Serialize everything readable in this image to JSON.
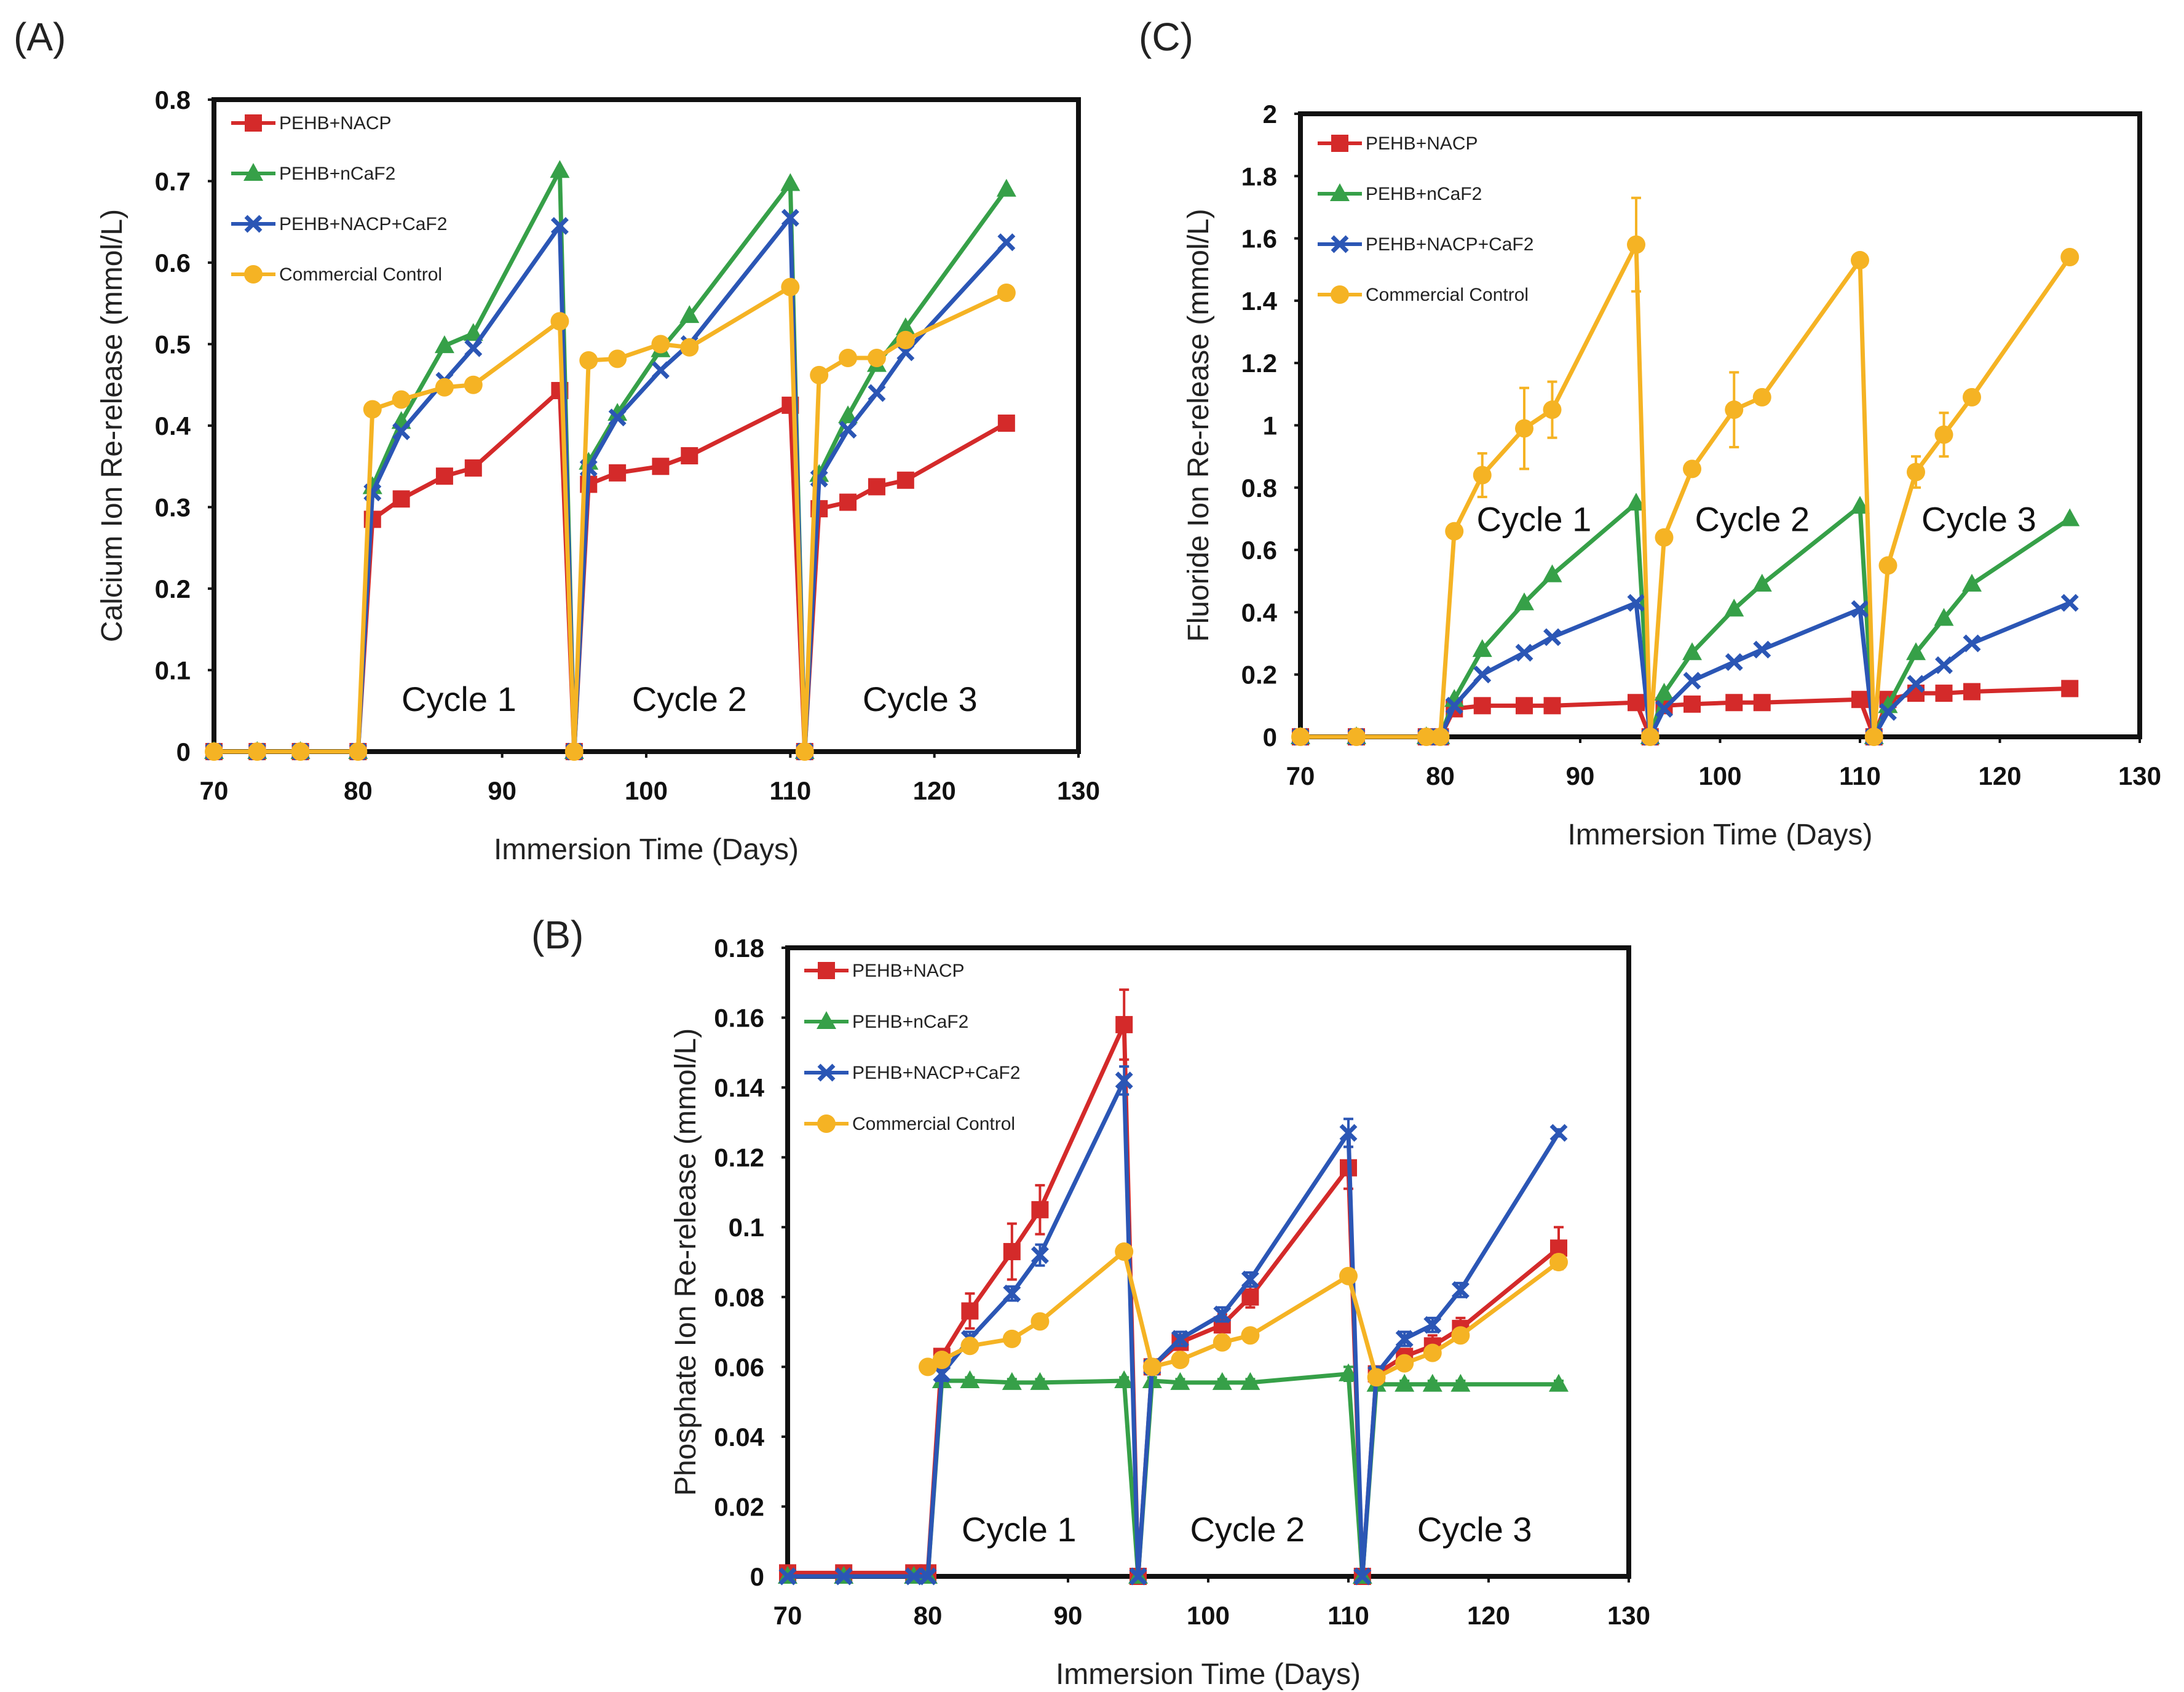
{
  "figure": {
    "panels": [
      "(A)",
      "(B)",
      "(C)"
    ],
    "colors": {
      "PEHB+NACP": "#d42a2a",
      "PEHB+nCaF2": "#36a048",
      "PEHB+NACP+CaF2": "#2b56b5",
      "Commercial Control": "#f5b324"
    }
  },
  "chart_data": [
    {
      "id": "A",
      "panel_label": "(A)",
      "type": "line",
      "xlabel": "Immersion Time (Days)",
      "ylabel": "Calcium Ion Re-release (mmol/L)",
      "xlim": [
        70,
        130
      ],
      "ylim": [
        0,
        0.8
      ],
      "xticks": [
        70,
        80,
        90,
        100,
        110,
        120,
        130
      ],
      "yticks": [
        0,
        0.1,
        0.2,
        0.3,
        0.4,
        0.5,
        0.6,
        0.7,
        0.8
      ],
      "ytick_labels": [
        "0",
        "0.1",
        "0.2",
        "0.3",
        "0.4",
        "0.5",
        "0.6",
        "0.7",
        "0.8"
      ],
      "legend": "top-left",
      "annotations": [
        {
          "text": "Cycle 1",
          "x": 87,
          "y": 0.05
        },
        {
          "text": "Cycle 2",
          "x": 103,
          "y": 0.05
        },
        {
          "text": "Cycle 3",
          "x": 119,
          "y": 0.05
        }
      ],
      "series": [
        {
          "name": "PEHB+NACP",
          "marker": "square",
          "x": [
            70,
            73,
            76,
            80,
            81,
            83,
            86,
            88,
            94,
            95,
            96,
            98,
            101,
            103,
            110,
            111,
            112,
            114,
            116,
            118,
            125
          ],
          "y": [
            0,
            0,
            0,
            0,
            0.285,
            0.31,
            0.338,
            0.348,
            0.443,
            0,
            0.328,
            0.342,
            0.35,
            0.363,
            0.425,
            0,
            0.298,
            0.306,
            0.325,
            0.333,
            0.403
          ]
        },
        {
          "name": "PEHB+nCaF2",
          "marker": "triangle",
          "x": [
            70,
            73,
            76,
            80,
            81,
            83,
            86,
            88,
            94,
            95,
            96,
            98,
            101,
            103,
            110,
            111,
            112,
            114,
            116,
            118,
            125
          ],
          "y": [
            0,
            0,
            0,
            0,
            0.325,
            0.405,
            0.498,
            0.513,
            0.713,
            0,
            0.355,
            0.415,
            0.493,
            0.535,
            0.697,
            0,
            0.34,
            0.412,
            0.475,
            0.52,
            0.69
          ]
        },
        {
          "name": "PEHB+NACP+CaF2",
          "marker": "x",
          "x": [
            70,
            73,
            76,
            80,
            81,
            83,
            86,
            88,
            94,
            95,
            96,
            98,
            101,
            103,
            110,
            111,
            112,
            114,
            116,
            118,
            125
          ],
          "y": [
            0,
            0,
            0,
            0,
            0.318,
            0.393,
            0.455,
            0.495,
            0.645,
            0,
            0.348,
            0.41,
            0.468,
            0.5,
            0.655,
            0,
            0.335,
            0.395,
            0.44,
            0.49,
            0.625
          ]
        },
        {
          "name": "Commercial Control",
          "marker": "circle",
          "x": [
            70,
            73,
            76,
            80,
            81,
            83,
            86,
            88,
            94,
            95,
            96,
            98,
            101,
            103,
            110,
            111,
            112,
            114,
            116,
            118,
            125
          ],
          "y": [
            0,
            0,
            0,
            0,
            0.42,
            0.432,
            0.447,
            0.45,
            0.528,
            0,
            0.48,
            0.482,
            0.5,
            0.496,
            0.57,
            0,
            0.462,
            0.483,
            0.483,
            0.505,
            0.563
          ]
        }
      ]
    },
    {
      "id": "B",
      "panel_label": "(B)",
      "type": "line",
      "xlabel": "Immersion Time (Days)",
      "ylabel": "Phosphate Ion Re-release (mmol/L)",
      "xlim": [
        70,
        130
      ],
      "ylim": [
        0,
        0.18
      ],
      "xticks": [
        70,
        80,
        90,
        100,
        110,
        120,
        130
      ],
      "yticks": [
        0,
        0.02,
        0.04,
        0.06,
        0.08,
        0.1,
        0.12,
        0.14,
        0.16,
        0.18
      ],
      "ytick_labels": [
        "0",
        "0.02",
        "0.04",
        "0.06",
        "0.08",
        "0.1",
        "0.12",
        "0.14",
        "0.16",
        "0.18"
      ],
      "legend": "top-left",
      "annotations": [
        {
          "text": "Cycle 1",
          "x": 86.5,
          "y": 0.01
        },
        {
          "text": "Cycle 2",
          "x": 102.8,
          "y": 0.01
        },
        {
          "text": "Cycle 3",
          "x": 119,
          "y": 0.01
        }
      ],
      "series": [
        {
          "name": "PEHB+NACP",
          "marker": "square",
          "x": [
            70,
            74,
            79,
            80,
            81,
            83,
            86,
            88,
            94,
            95,
            96,
            98,
            101,
            103,
            110,
            111,
            112,
            114,
            116,
            118,
            125
          ],
          "y": [
            0.001,
            0.001,
            0.001,
            0.001,
            0.063,
            0.076,
            0.093,
            0.105,
            0.158,
            0,
            0.06,
            0.067,
            0.072,
            0.08,
            0.117,
            0,
            0.058,
            0.063,
            0.066,
            0.071,
            0.094
          ],
          "err": [
            0,
            0,
            0,
            0,
            0.002,
            0.005,
            0.008,
            0.007,
            0.01,
            0,
            0.002,
            0.002,
            0.003,
            0.003,
            0.006,
            0,
            0.002,
            0.002,
            0.003,
            0.003,
            0.006
          ]
        },
        {
          "name": "PEHB+nCaF2",
          "marker": "triangle",
          "x": [
            70,
            74,
            79,
            80,
            81,
            83,
            86,
            88,
            94,
            95,
            96,
            98,
            101,
            103,
            110,
            111,
            112,
            114,
            116,
            118,
            125
          ],
          "y": [
            0,
            0,
            0,
            0,
            0.056,
            0.056,
            0.0555,
            0.0555,
            0.056,
            0,
            0.056,
            0.0555,
            0.0555,
            0.0555,
            0.058,
            0,
            0.055,
            0.055,
            0.055,
            0.055,
            0.055
          ],
          "err": [
            0,
            0,
            0,
            0,
            0.001,
            0.001,
            0.001,
            0.001,
            0.001,
            0,
            0.001,
            0.001,
            0.001,
            0.001,
            0.002,
            0,
            0.001,
            0.001,
            0.001,
            0.001,
            0.001
          ]
        },
        {
          "name": "PEHB+NACP+CaF2",
          "marker": "x",
          "x": [
            70,
            74,
            79,
            80,
            81,
            83,
            86,
            88,
            94,
            95,
            96,
            98,
            101,
            103,
            110,
            111,
            112,
            114,
            116,
            118,
            125
          ],
          "y": [
            0,
            0,
            0,
            0,
            0.058,
            0.068,
            0.081,
            0.092,
            0.142,
            0,
            0.06,
            0.068,
            0.075,
            0.085,
            0.127,
            0,
            0.058,
            0.068,
            0.072,
            0.082,
            0.127
          ],
          "err": [
            0,
            0,
            0,
            0,
            0.002,
            0.002,
            0.002,
            0.003,
            0.004,
            0,
            0.002,
            0.002,
            0.002,
            0.002,
            0.004,
            0,
            0.002,
            0.002,
            0.002,
            0.002,
            0.001
          ]
        },
        {
          "name": "Commercial Control",
          "marker": "circle",
          "x": [
            80,
            81,
            83,
            86,
            88,
            94,
            96,
            98,
            101,
            103,
            110,
            112,
            114,
            116,
            118,
            125
          ],
          "y": [
            0.06,
            0.062,
            0.066,
            0.068,
            0.073,
            0.093,
            0.06,
            0.062,
            0.067,
            0.069,
            0.086,
            0.057,
            0.061,
            0.064,
            0.069,
            0.09
          ],
          "err": [
            0,
            0.001,
            0.001,
            0.001,
            0.001,
            0.001,
            0.001,
            0.001,
            0.001,
            0.001,
            0.001,
            0.001,
            0.001,
            0.001,
            0.001,
            0.002
          ]
        }
      ]
    },
    {
      "id": "C",
      "panel_label": "(C)",
      "type": "line",
      "xlabel": "Immersion Time (Days)",
      "ylabel": "Fluoride Ion Re-release (mmol/L)",
      "xlim": [
        70,
        130
      ],
      "ylim": [
        0,
        2
      ],
      "xticks": [
        70,
        80,
        90,
        100,
        110,
        120,
        130
      ],
      "yticks": [
        0,
        0.2,
        0.4,
        0.6,
        0.8,
        1,
        1.2,
        1.4,
        1.6,
        1.8,
        2
      ],
      "ytick_labels": [
        "0",
        "0.2",
        "0.4",
        "0.6",
        "0.8",
        "1",
        "1.2",
        "1.4",
        "1.6",
        "1.8",
        "2"
      ],
      "legend": "top-left",
      "annotations": [
        {
          "text": "Cycle 1",
          "x": 86.7,
          "y": 0.66
        },
        {
          "text": "Cycle 2",
          "x": 102.3,
          "y": 0.66
        },
        {
          "text": "Cycle 3",
          "x": 118.5,
          "y": 0.66
        }
      ],
      "series": [
        {
          "name": "PEHB+NACP",
          "marker": "square",
          "x": [
            70,
            74,
            79,
            80,
            81,
            83,
            86,
            88,
            94,
            95,
            96,
            98,
            101,
            103,
            110,
            111,
            112,
            114,
            116,
            118,
            125
          ],
          "y": [
            0,
            0,
            0,
            0,
            0.09,
            0.1,
            0.1,
            0.1,
            0.11,
            0,
            0.1,
            0.105,
            0.11,
            0.11,
            0.12,
            0,
            0.12,
            0.14,
            0.14,
            0.145,
            0.155
          ],
          "err": [
            0,
            0,
            0,
            0,
            0,
            0,
            0,
            0,
            0,
            0,
            0,
            0,
            0,
            0,
            0,
            0,
            0,
            0,
            0,
            0,
            0
          ]
        },
        {
          "name": "PEHB+nCaF2",
          "marker": "triangle",
          "x": [
            70,
            74,
            79,
            80,
            81,
            83,
            86,
            88,
            94,
            95,
            96,
            98,
            101,
            103,
            110,
            111,
            112,
            114,
            116,
            118,
            125
          ],
          "y": [
            0,
            0,
            0,
            0,
            0.12,
            0.28,
            0.43,
            0.52,
            0.75,
            0,
            0.14,
            0.27,
            0.41,
            0.49,
            0.74,
            0,
            0.1,
            0.27,
            0.38,
            0.49,
            0.7
          ],
          "err": [
            0,
            0,
            0,
            0,
            0,
            0,
            0,
            0,
            0,
            0,
            0,
            0,
            0,
            0,
            0,
            0,
            0,
            0,
            0,
            0,
            0
          ]
        },
        {
          "name": "PEHB+NACP+CaF2",
          "marker": "x",
          "x": [
            70,
            74,
            79,
            80,
            81,
            83,
            86,
            88,
            94,
            95,
            96,
            98,
            101,
            103,
            110,
            111,
            112,
            114,
            116,
            118,
            125
          ],
          "y": [
            0,
            0,
            0,
            0,
            0.1,
            0.2,
            0.27,
            0.32,
            0.43,
            0,
            0.09,
            0.18,
            0.24,
            0.28,
            0.41,
            0,
            0.08,
            0.17,
            0.23,
            0.3,
            0.43
          ],
          "err": [
            0,
            0,
            0,
            0,
            0,
            0,
            0,
            0,
            0,
            0,
            0,
            0,
            0,
            0,
            0,
            0,
            0,
            0,
            0,
            0,
            0
          ]
        },
        {
          "name": "Commercial Control",
          "marker": "circle",
          "x": [
            70,
            74,
            79,
            80,
            81,
            83,
            86,
            88,
            94,
            95,
            96,
            98,
            101,
            103,
            110,
            111,
            112,
            114,
            116,
            118,
            125
          ],
          "y": [
            0,
            0,
            0,
            0,
            0.66,
            0.84,
            0.99,
            1.05,
            1.58,
            0,
            0.64,
            0.86,
            1.05,
            1.09,
            1.53,
            0,
            0.55,
            0.85,
            0.97,
            1.09,
            1.54
          ],
          "err": [
            0,
            0,
            0,
            0,
            0,
            0.07,
            0.13,
            0.09,
            0.15,
            0,
            0,
            0,
            0.12,
            0,
            0,
            0,
            0,
            0.05,
            0.07,
            0,
            0
          ]
        }
      ]
    }
  ]
}
